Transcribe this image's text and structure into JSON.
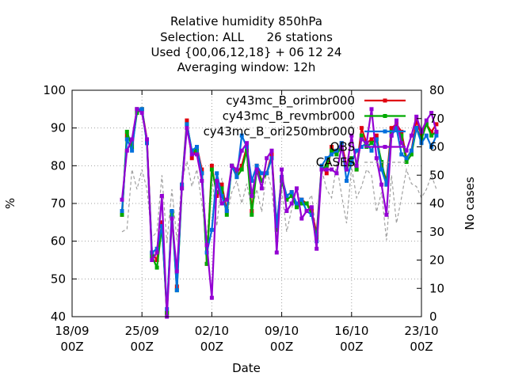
{
  "chart_data": {
    "type": "line",
    "title_lines": [
      "Relative humidity 850hPa",
      "Selection: ALL      26 stations",
      "Used {00,06,12,18} + 06 12 24",
      "Averaging window: 12h"
    ],
    "xlabel": "Date",
    "ylabel": "%",
    "y2label": "No cases",
    "x_axis_start": "2023-09-18T00:00Z",
    "xlim_days": [
      0,
      35
    ],
    "ylim": [
      40,
      100
    ],
    "y2lim": [
      0,
      80
    ],
    "xticks": [
      {
        "day": 0,
        "line1": "18/09",
        "line2": "00Z"
      },
      {
        "day": 7,
        "line1": "25/09",
        "line2": "00Z"
      },
      {
        "day": 14,
        "line1": "02/10",
        "line2": "00Z"
      },
      {
        "day": 21,
        "line1": "09/10",
        "line2": "00Z"
      },
      {
        "day": 28,
        "line1": "16/10",
        "line2": "00Z"
      },
      {
        "day": 35,
        "line1": "23/10",
        "line2": "00Z"
      }
    ],
    "yticks": [
      "40",
      "50",
      "60",
      "70",
      "80",
      "90",
      "100"
    ],
    "y2ticks": [
      "0",
      "10",
      "20",
      "30",
      "40",
      "50",
      "60",
      "70",
      "80"
    ],
    "grid": true,
    "legend_position": "top-right",
    "series": [
      {
        "name": "cy43mc_B_orimbr000",
        "color": "#e0000f",
        "values": [
          67,
          88,
          86,
          95,
          95,
          87,
          57,
          55,
          65,
          41,
          68,
          48,
          75,
          92,
          82,
          85,
          79,
          54,
          80,
          72,
          75,
          68,
          80,
          78,
          80,
          85,
          68,
          80,
          76,
          78,
          83,
          64,
          77,
          72,
          73,
          70,
          71,
          70,
          68,
          62,
          80,
          78,
          85,
          83,
          86,
          80,
          82,
          79,
          90,
          86,
          87,
          88,
          80,
          76,
          90,
          91,
          89,
          82,
          84,
          92,
          88,
          91,
          89,
          91
        ]
      },
      {
        "name": "cy43mc_B_revmbr000",
        "color": "#00aa00",
        "values": [
          67,
          89,
          85,
          94,
          95,
          86,
          56,
          53,
          64,
          41,
          67,
          47,
          74,
          91,
          84,
          84,
          78,
          54,
          79,
          73,
          74,
          67,
          80,
          77,
          79,
          84,
          67,
          79,
          76,
          78,
          82,
          63,
          76,
          71,
          72,
          69,
          70,
          70,
          67,
          61,
          79,
          80,
          84,
          83,
          85,
          79,
          82,
          79,
          88,
          85,
          86,
          87,
          81,
          75,
          89,
          90,
          88,
          81,
          83,
          90,
          87,
          91,
          88,
          89
        ]
      },
      {
        "name": "cy43mc_B_ori250mbr000",
        "color": "#0070dd",
        "values": [
          68,
          87,
          84,
          95,
          95,
          86,
          57,
          58,
          64,
          42,
          68,
          47,
          75,
          91,
          84,
          85,
          78,
          57,
          63,
          78,
          72,
          68,
          80,
          77,
          88,
          85,
          76,
          80,
          78,
          78,
          82,
          64,
          77,
          72,
          73,
          70,
          71,
          68,
          67,
          60,
          80,
          82,
          83,
          84,
          86,
          76,
          81,
          84,
          85,
          86,
          84,
          87,
          79,
          75,
          88,
          90,
          83,
          82,
          84,
          90,
          86,
          88,
          85,
          88
        ]
      },
      {
        "name": "OBS",
        "color": "#9400d3",
        "values": [
          71,
          84,
          87,
          95,
          94,
          87,
          55,
          57,
          72,
          40,
          66,
          52,
          74,
          90,
          83,
          83,
          76,
          59,
          45,
          76,
          70,
          71,
          80,
          79,
          84,
          86,
          72,
          79,
          74,
          82,
          84,
          57,
          79,
          68,
          70,
          74,
          66,
          68,
          69,
          58,
          79,
          79,
          79,
          78,
          85,
          79,
          88,
          80,
          87,
          86,
          95,
          82,
          75,
          67,
          88,
          92,
          86,
          84,
          88,
          93,
          89,
          92,
          94,
          89
        ]
      },
      {
        "name": "CASES",
        "color": "#a0a0a0",
        "axis": "y2",
        "values": [
          30,
          31,
          52,
          45,
          52,
          45,
          28,
          30,
          50,
          26,
          45,
          27,
          48,
          55,
          46,
          52,
          40,
          27,
          50,
          32,
          49,
          36,
          44,
          48,
          40,
          47,
          38,
          45,
          37,
          52,
          45,
          28,
          45,
          30,
          38,
          45,
          40,
          40,
          43,
          28,
          52,
          45,
          42,
          54,
          43,
          33,
          53,
          42,
          46,
          52,
          50,
          37,
          44,
          27,
          50,
          33,
          42,
          52,
          47,
          46,
          42,
          45,
          50,
          45
        ]
      }
    ]
  }
}
